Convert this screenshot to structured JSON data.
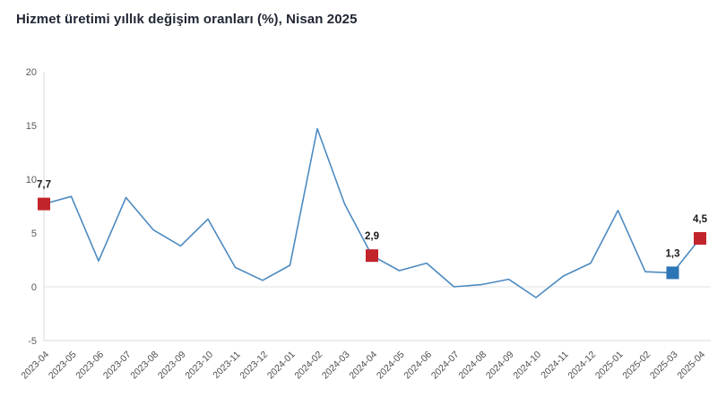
{
  "page": {
    "title": "Hizmet üretimi yıllık değişim oranları (%), Nisan 2025"
  },
  "colors": {
    "line": "#4d8ac0",
    "marker_red": "#c2242c",
    "marker_blue": "#2e75b6",
    "axis_line": "#d9d9d9",
    "zero_line": "#e2e2e2",
    "y_tick_text": "#595959",
    "x_tick_text": "#4d4d4d",
    "title_text": "#1f2633",
    "point_label_text": "#1a1a1a"
  },
  "chart_data": {
    "type": "line",
    "title": "Hizmet üretimi yıllık değişim oranları (%), Nisan 2025",
    "categories": [
      "2023-04",
      "2023-05",
      "2023-06",
      "2023-07",
      "2023-08",
      "2023-09",
      "2023-10",
      "2023-11",
      "2023-12",
      "2024-01",
      "2024-02",
      "2024-03",
      "2024-04",
      "2024-05",
      "2024-06",
      "2024-07",
      "2024-08",
      "2024-09",
      "2024-10",
      "2024-11",
      "2024-12",
      "2025-01",
      "2025-02",
      "2025-03",
      "2025-04"
    ],
    "values": [
      7.7,
      8.4,
      2.4,
      8.3,
      5.3,
      3.8,
      6.3,
      1.8,
      0.6,
      2.0,
      14.7,
      7.7,
      2.9,
      1.5,
      2.2,
      0.0,
      0.2,
      0.7,
      -1.0,
      1.0,
      2.2,
      7.1,
      1.4,
      1.3,
      4.5
    ],
    "xlabel": "",
    "ylabel": "",
    "ylim": [
      -5,
      20
    ],
    "yticks": [
      20,
      15,
      10,
      5,
      0,
      -5
    ],
    "legend": "none",
    "grid": "zero gridline only",
    "annotations": [
      {
        "category": "2023-04",
        "value": 7.7,
        "label": "7,7",
        "marker": "square",
        "color_key": "marker_red"
      },
      {
        "category": "2024-04",
        "value": 2.9,
        "label": "2,9",
        "marker": "square",
        "color_key": "marker_red"
      },
      {
        "category": "2025-03",
        "value": 1.3,
        "label": "1,3",
        "marker": "square",
        "color_key": "marker_blue"
      },
      {
        "category": "2025-04",
        "value": 4.5,
        "label": "4,5",
        "marker": "square",
        "color_key": "marker_red"
      }
    ]
  }
}
